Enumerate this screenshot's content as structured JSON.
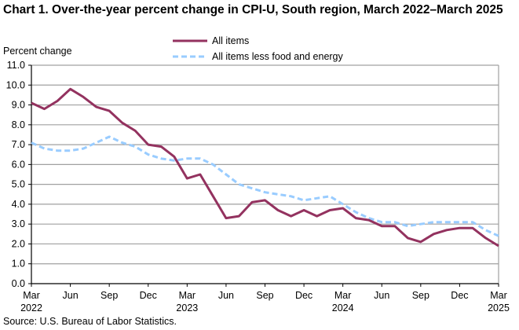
{
  "chart_data": {
    "type": "line",
    "title": "Chart 1. Over-the-year percent change in CPI-U, South region, March 2022–March 2025",
    "ylabel": "Percent change",
    "xlabel": "",
    "ylim": [
      0,
      11
    ],
    "yticks": [
      "0.0",
      "1.0",
      "2.0",
      "3.0",
      "4.0",
      "5.0",
      "6.0",
      "7.0",
      "8.0",
      "9.0",
      "10.0",
      "11.0"
    ],
    "xticks": [
      {
        "month": "Mar",
        "year": "2022",
        "i": 0
      },
      {
        "month": "Jun",
        "year": "",
        "i": 3
      },
      {
        "month": "Sep",
        "year": "",
        "i": 6
      },
      {
        "month": "Dec",
        "year": "",
        "i": 9
      },
      {
        "month": "Mar",
        "year": "2023",
        "i": 12
      },
      {
        "month": "Jun",
        "year": "",
        "i": 15
      },
      {
        "month": "Sep",
        "year": "",
        "i": 18
      },
      {
        "month": "Dec",
        "year": "",
        "i": 21
      },
      {
        "month": "Mar",
        "year": "2024",
        "i": 24
      },
      {
        "month": "Jun",
        "year": "",
        "i": 27
      },
      {
        "month": "Sep",
        "year": "",
        "i": 30
      },
      {
        "month": "Dec",
        "year": "",
        "i": 33
      },
      {
        "month": "Mar",
        "year": "2025",
        "i": 36
      }
    ],
    "grid": true,
    "legend_placement": "top-center",
    "series": [
      {
        "name": "All items",
        "color": "#93325F",
        "dashed": false,
        "values": [
          9.1,
          8.8,
          9.2,
          9.8,
          9.4,
          8.9,
          8.7,
          8.1,
          7.7,
          7.0,
          6.9,
          6.4,
          5.3,
          5.5,
          4.4,
          3.3,
          3.4,
          4.1,
          4.2,
          3.7,
          3.4,
          3.7,
          3.4,
          3.7,
          3.8,
          3.3,
          3.2,
          2.9,
          2.9,
          2.3,
          2.1,
          2.5,
          2.7,
          2.8,
          2.8,
          2.3,
          1.9
        ]
      },
      {
        "name": "All items less food and energy",
        "color": "#99CCFF",
        "dashed": true,
        "values": [
          7.1,
          6.8,
          6.7,
          6.7,
          6.8,
          7.1,
          7.4,
          7.1,
          6.9,
          6.5,
          6.3,
          6.2,
          6.3,
          6.3,
          6.0,
          5.5,
          5.0,
          4.8,
          4.6,
          4.5,
          4.4,
          4.2,
          4.3,
          4.4,
          4.0,
          3.6,
          3.3,
          3.1,
          3.1,
          2.9,
          3.0,
          3.1,
          3.1,
          3.1,
          3.1,
          2.7,
          2.4
        ]
      }
    ]
  },
  "source": "Source: U.S. Bureau of Labor Statistics."
}
